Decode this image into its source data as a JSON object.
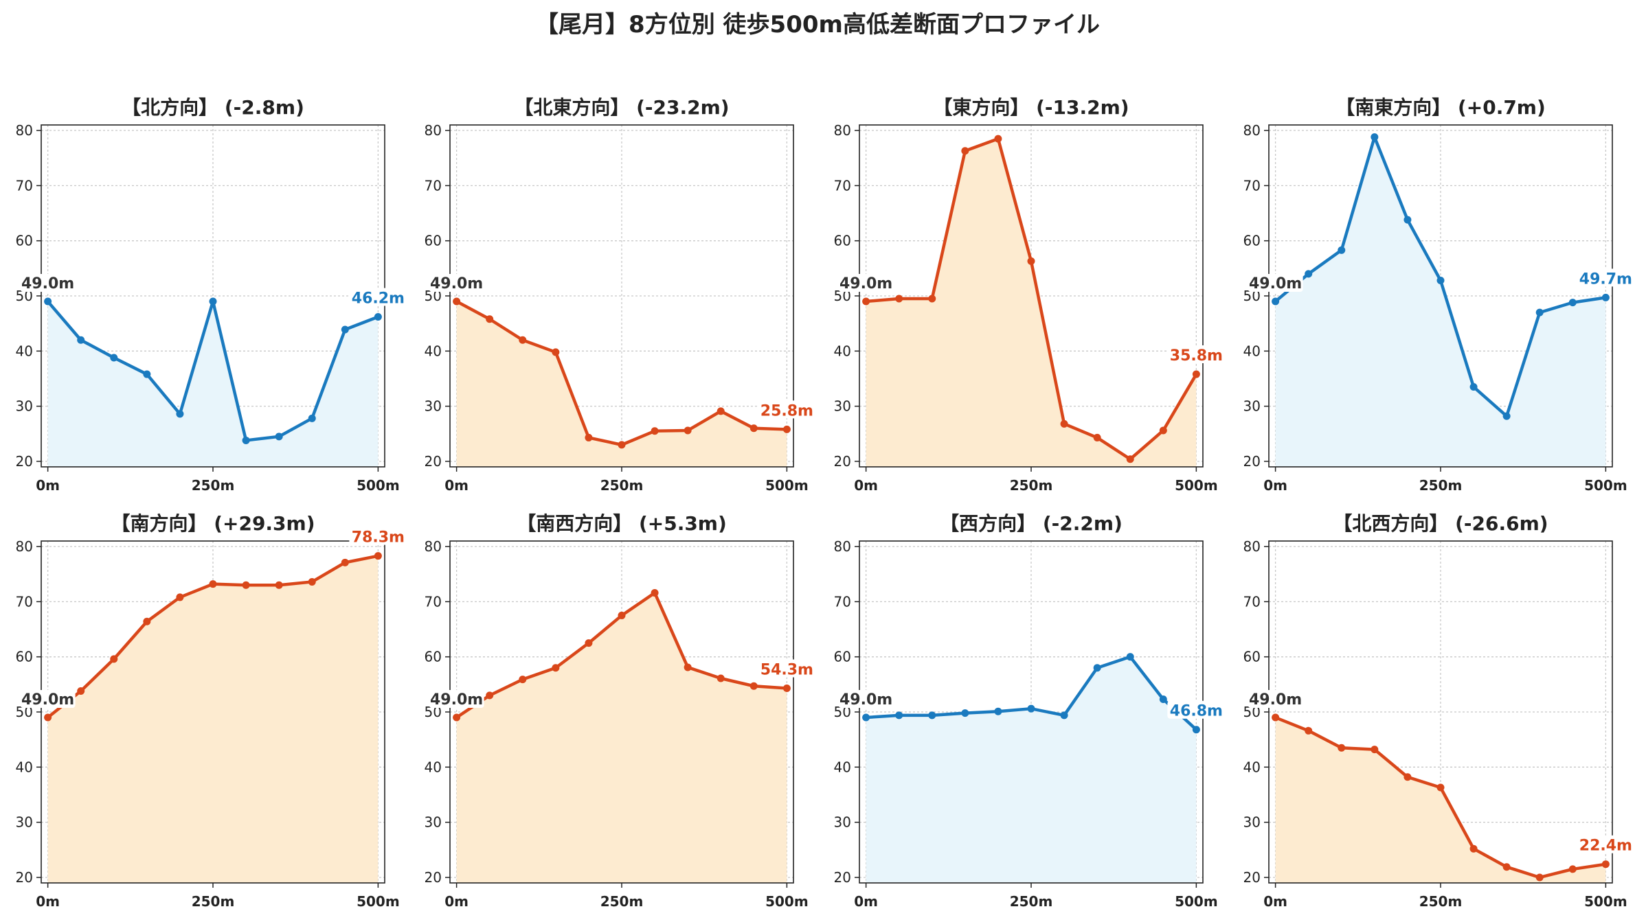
{
  "title": "【尾月】8方位別 徒歩500m高低差断面プロファイル",
  "colors": {
    "up": "#d9471a",
    "down": "#1a7abf",
    "up_fill": "#fdebd0",
    "down_fill": "#e8f5fb",
    "start_label": "#333333"
  },
  "chart_data": [
    {
      "type": "area",
      "title": "【北方向】 (-2.8m)",
      "trend": "down",
      "x": [
        0,
        50,
        100,
        150,
        200,
        250,
        300,
        350,
        400,
        450,
        500
      ],
      "y": [
        49.0,
        42.0,
        38.8,
        35.8,
        28.6,
        49.0,
        23.8,
        24.5,
        27.8,
        43.9,
        46.2
      ],
      "xticks": [
        "0m",
        "250m",
        "500m"
      ],
      "yticks": [
        20,
        30,
        40,
        50,
        60,
        70,
        80
      ],
      "ylim": [
        19,
        81
      ],
      "xlim": [
        -10,
        510
      ],
      "start_label": "49.0m",
      "end_label": "46.2m",
      "grid": true
    },
    {
      "type": "area",
      "title": "【北東方向】 (-23.2m)",
      "trend": "up",
      "x": [
        0,
        50,
        100,
        150,
        200,
        250,
        300,
        350,
        400,
        450,
        500
      ],
      "y": [
        49.0,
        45.8,
        42.0,
        39.8,
        24.3,
        23.0,
        25.5,
        25.6,
        29.1,
        26.0,
        25.8
      ],
      "xticks": [
        "0m",
        "250m",
        "500m"
      ],
      "yticks": [
        20,
        30,
        40,
        50,
        60,
        70,
        80
      ],
      "ylim": [
        19,
        81
      ],
      "xlim": [
        -10,
        510
      ],
      "start_label": "49.0m",
      "end_label": "25.8m",
      "grid": true
    },
    {
      "type": "area",
      "title": "【東方向】 (-13.2m)",
      "trend": "up",
      "x": [
        0,
        50,
        100,
        150,
        200,
        250,
        300,
        350,
        400,
        450,
        500
      ],
      "y": [
        49.0,
        49.5,
        49.5,
        76.3,
        78.5,
        56.3,
        26.8,
        24.3,
        20.4,
        25.6,
        35.8
      ],
      "xticks": [
        "0m",
        "250m",
        "500m"
      ],
      "yticks": [
        20,
        30,
        40,
        50,
        60,
        70,
        80
      ],
      "ylim": [
        19,
        81
      ],
      "xlim": [
        -10,
        510
      ],
      "start_label": "49.0m",
      "end_label": "35.8m",
      "grid": true
    },
    {
      "type": "area",
      "title": "【南東方向】 (+0.7m)",
      "trend": "down",
      "x": [
        0,
        50,
        100,
        150,
        200,
        250,
        300,
        350,
        400,
        450,
        500
      ],
      "y": [
        49.0,
        54.0,
        58.3,
        78.8,
        63.8,
        52.8,
        33.5,
        28.2,
        47.0,
        48.8,
        49.7
      ],
      "xticks": [
        "0m",
        "250m",
        "500m"
      ],
      "yticks": [
        20,
        30,
        40,
        50,
        60,
        70,
        80
      ],
      "ylim": [
        19,
        81
      ],
      "xlim": [
        -10,
        510
      ],
      "start_label": "49.0m",
      "end_label": "49.7m",
      "grid": true
    },
    {
      "type": "area",
      "title": "【南方向】 (+29.3m)",
      "trend": "up",
      "x": [
        0,
        50,
        100,
        150,
        200,
        250,
        300,
        350,
        400,
        450,
        500
      ],
      "y": [
        49.0,
        53.8,
        59.6,
        66.4,
        70.8,
        73.2,
        73.0,
        73.0,
        73.6,
        77.1,
        78.3
      ],
      "xticks": [
        "0m",
        "250m",
        "500m"
      ],
      "yticks": [
        20,
        30,
        40,
        50,
        60,
        70,
        80
      ],
      "ylim": [
        19,
        81
      ],
      "xlim": [
        -10,
        510
      ],
      "start_label": "49.0m",
      "end_label": "78.3m",
      "grid": true
    },
    {
      "type": "area",
      "title": "【南西方向】 (+5.3m)",
      "trend": "up",
      "x": [
        0,
        50,
        100,
        150,
        200,
        250,
        300,
        350,
        400,
        450,
        500
      ],
      "y": [
        49.0,
        53.0,
        55.9,
        58.0,
        62.5,
        67.5,
        71.6,
        58.1,
        56.1,
        54.7,
        54.3
      ],
      "xticks": [
        "0m",
        "250m",
        "500m"
      ],
      "yticks": [
        20,
        30,
        40,
        50,
        60,
        70,
        80
      ],
      "ylim": [
        19,
        81
      ],
      "xlim": [
        -10,
        510
      ],
      "start_label": "49.0m",
      "end_label": "54.3m",
      "grid": true
    },
    {
      "type": "area",
      "title": "【西方向】 (-2.2m)",
      "trend": "down",
      "x": [
        0,
        50,
        100,
        150,
        200,
        250,
        300,
        350,
        400,
        450,
        500
      ],
      "y": [
        49.0,
        49.4,
        49.4,
        49.8,
        50.1,
        50.6,
        49.4,
        58.0,
        60.0,
        52.3,
        46.8
      ],
      "xticks": [
        "0m",
        "250m",
        "500m"
      ],
      "yticks": [
        20,
        30,
        40,
        50,
        60,
        70,
        80
      ],
      "ylim": [
        19,
        81
      ],
      "xlim": [
        -10,
        510
      ],
      "start_label": "49.0m",
      "end_label": "46.8m",
      "grid": true
    },
    {
      "type": "area",
      "title": "【北西方向】 (-26.6m)",
      "trend": "up",
      "x": [
        0,
        50,
        100,
        150,
        200,
        250,
        300,
        350,
        400,
        450,
        500
      ],
      "y": [
        49.0,
        46.6,
        43.5,
        43.2,
        38.2,
        36.3,
        25.2,
        21.9,
        20.0,
        21.5,
        22.4
      ],
      "xticks": [
        "0m",
        "250m",
        "500m"
      ],
      "yticks": [
        20,
        30,
        40,
        50,
        60,
        70,
        80
      ],
      "ylim": [
        19,
        81
      ],
      "xlim": [
        -10,
        510
      ],
      "start_label": "49.0m",
      "end_label": "22.4m",
      "grid": true
    }
  ]
}
